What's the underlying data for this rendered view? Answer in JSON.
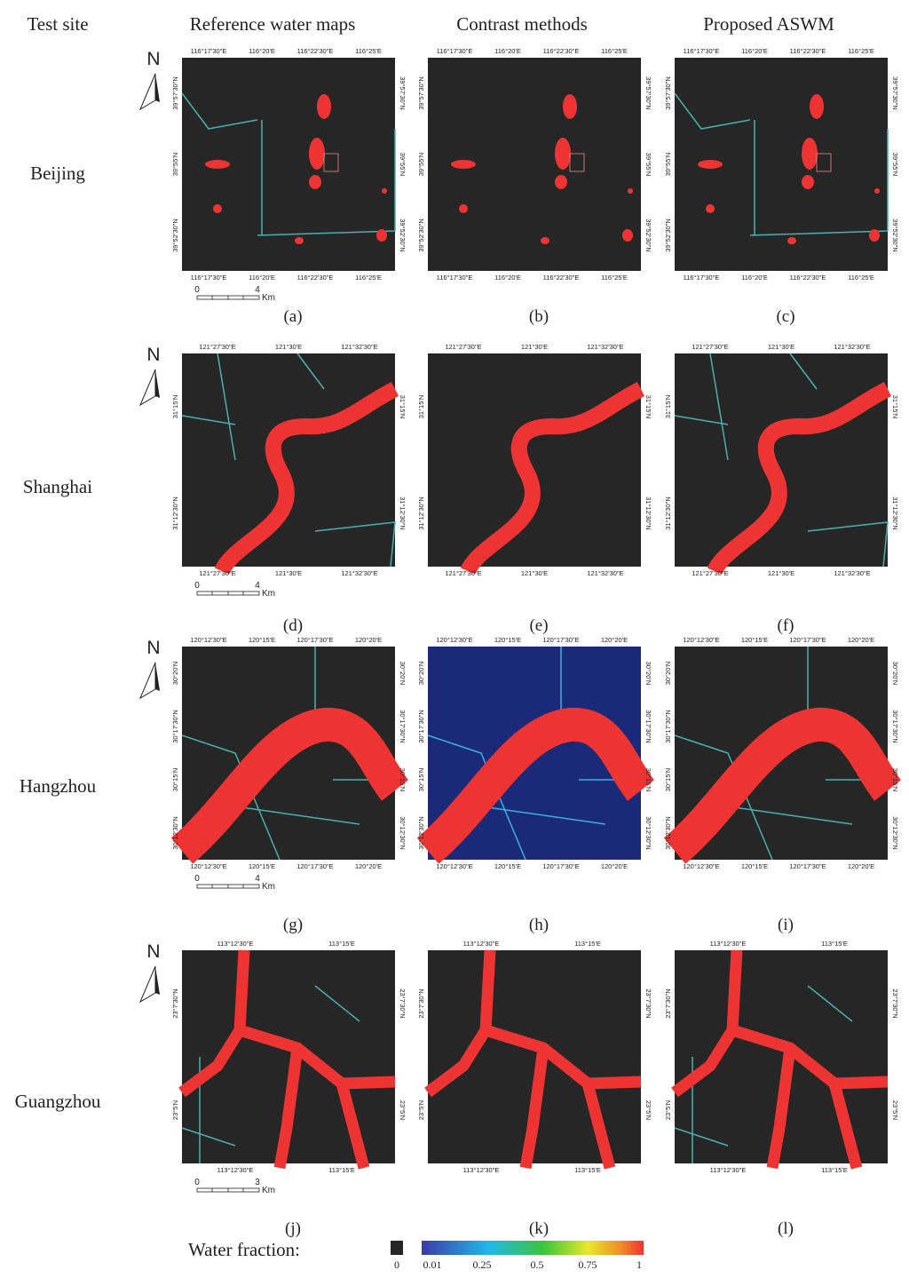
{
  "header": {
    "test_site": "Test site",
    "columns": [
      "Reference water maps",
      "Contrast  methods",
      "Proposed ASWM"
    ]
  },
  "rows": [
    {
      "site": "Beijing",
      "north": "N",
      "lon": [
        "116°17'30\"E",
        "116°20'E",
        "116°22'30\"E",
        "116°25'E"
      ],
      "lat": [
        "39°57'30\"N",
        "39°55'N",
        "39°52'30\"N"
      ],
      "panels": [
        "(a)",
        "(b)",
        "(c)"
      ],
      "scale": {
        "zero": "0",
        "distance": "4",
        "unit": "Km"
      }
    },
    {
      "site": "Shanghai",
      "north": "N",
      "lon": [
        "121°27'30\"E",
        "121°30'E",
        "121°32'30\"E"
      ],
      "lat": [
        "31°15'N",
        "31°12'30\"N"
      ],
      "panels": [
        "(d)",
        "(e)",
        "(f)"
      ],
      "scale": {
        "zero": "0",
        "distance": "4",
        "unit": "Km"
      }
    },
    {
      "site": "Hangzhou",
      "north": "N",
      "lon": [
        "120°12'30\"E",
        "120°15'E",
        "120°17'30\"E",
        "120°20'E"
      ],
      "lat": [
        "30°20'N",
        "30°17'30\"N",
        "30°15'N",
        "30°12'30\"N"
      ],
      "panels": [
        "(g)",
        "(h)",
        "(i)"
      ],
      "scale": {
        "zero": "0",
        "distance": "4",
        "unit": "Km"
      }
    },
    {
      "site": "Guangzhou",
      "north": "N",
      "lon": [
        "113°12'30\"E",
        "113°15'E"
      ],
      "lat": [
        "23°7'30\"N",
        "23°5'N"
      ],
      "panels": [
        "(j)",
        "(k)",
        "(l)"
      ],
      "scale": {
        "zero": "0",
        "distance": "3",
        "unit": "Km"
      }
    }
  ],
  "legend": {
    "title": "Water fraction:",
    "zero": "0",
    "labels": [
      "0.01",
      "0.25",
      "0.5",
      "0.75",
      "1"
    ]
  }
}
